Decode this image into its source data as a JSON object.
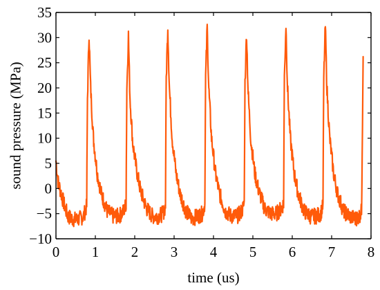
{
  "chart_data": {
    "type": "line",
    "title": "",
    "xlabel": "time (us)",
    "ylabel": "sound pressure (MPa)",
    "xlim": [
      0,
      8
    ],
    "ylim": [
      -10,
      35
    ],
    "x_ticks": [
      0,
      1,
      2,
      3,
      4,
      5,
      6,
      7,
      8
    ],
    "x_tick_labels": [
      "0",
      "1",
      "2",
      "3",
      "4",
      "5",
      "6",
      "7",
      "8"
    ],
    "y_ticks": [
      -10,
      -5,
      0,
      5,
      10,
      15,
      20,
      25,
      30,
      35
    ],
    "y_tick_labels": [
      "−10",
      "−5",
      "0",
      "5",
      "10",
      "15",
      "20",
      "25",
      "30",
      "35"
    ],
    "grid": false,
    "legend": "none",
    "series": [
      {
        "color": "#FF5A0A",
        "pulse_peak_times": [
          0.84,
          1.84,
          2.84,
          3.84,
          4.84,
          5.84,
          6.84
        ],
        "pulse_peak_values": [
          31.0,
          30.5,
          32.3,
          32.1,
          31.1,
          32.6,
          32.4
        ],
        "x": [
          0.0,
          0.05,
          0.1,
          0.2,
          0.3,
          0.4,
          0.5,
          0.6,
          0.7,
          0.78,
          0.8,
          0.84,
          0.88,
          0.95,
          1.05,
          1.15,
          1.3,
          1.45,
          1.6,
          1.72,
          1.78,
          1.8,
          1.84,
          1.88,
          1.95,
          2.05,
          2.15,
          2.3,
          2.45,
          2.6,
          2.72,
          2.78,
          2.8,
          2.84,
          2.88,
          2.95,
          3.05,
          3.15,
          3.3,
          3.45,
          3.6,
          3.72,
          3.78,
          3.8,
          3.84,
          3.88,
          3.95,
          4.05,
          4.15,
          4.3,
          4.45,
          4.6,
          4.72,
          4.78,
          4.8,
          4.84,
          4.88,
          4.95,
          5.05,
          5.15,
          5.3,
          5.45,
          5.6,
          5.72,
          5.78,
          5.8,
          5.84,
          5.88,
          5.95,
          6.05,
          6.15,
          6.3,
          6.45,
          6.6,
          6.72,
          6.78,
          6.8,
          6.84,
          6.88,
          6.95,
          7.05,
          7.15,
          7.3,
          7.45,
          7.6,
          7.7,
          7.76,
          7.8
        ],
        "y": [
          5.5,
          1.5,
          0.0,
          -3.0,
          -5.5,
          -6.0,
          -6.2,
          -6.0,
          -5.5,
          -3.5,
          18.0,
          31.0,
          20.0,
          10.0,
          3.0,
          -1.0,
          -4.5,
          -5.5,
          -5.5,
          -4.5,
          -3.0,
          20.0,
          30.5,
          18.0,
          9.0,
          3.5,
          -0.5,
          -4.0,
          -5.5,
          -5.5,
          -5.0,
          -3.5,
          22.0,
          32.3,
          20.0,
          10.0,
          3.0,
          -1.0,
          -4.5,
          -6.0,
          -5.5,
          -5.0,
          -3.0,
          22.0,
          32.1,
          20.0,
          10.0,
          3.0,
          -1.0,
          -4.5,
          -5.5,
          -5.5,
          -4.5,
          -3.0,
          21.0,
          31.1,
          19.0,
          9.5,
          3.0,
          -0.5,
          -4.0,
          -5.0,
          -5.0,
          -4.0,
          -3.0,
          22.0,
          32.6,
          20.0,
          10.0,
          3.0,
          -1.0,
          -4.5,
          -5.5,
          -5.5,
          -5.0,
          -3.5,
          22.0,
          32.4,
          20.0,
          10.0,
          3.0,
          -1.0,
          -4.5,
          -5.5,
          -6.0,
          -5.5,
          -4.5,
          26.2
        ]
      }
    ]
  }
}
